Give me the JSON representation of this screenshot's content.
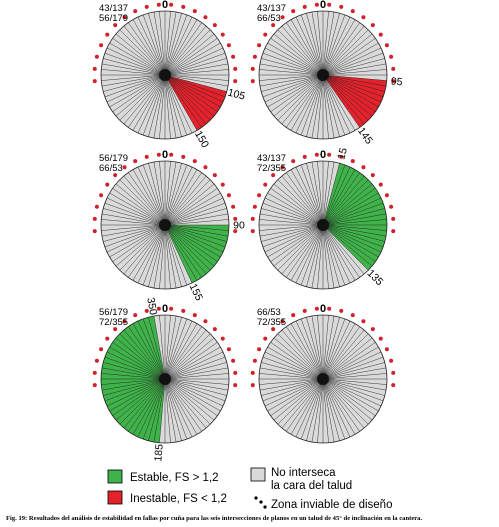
{
  "colors": {
    "stable": "#3fb34a",
    "unstable": "#e3222b",
    "neutral": "#dadada",
    "dot": "#d1202a",
    "line": "#222222"
  },
  "panels": [
    {
      "labels": [
        "43/137",
        "56/179"
      ],
      "north": "0",
      "sector": {
        "from": 105,
        "to": 150,
        "kind": "unstable"
      },
      "marks": [
        {
          "deg": 105,
          "text": "105"
        },
        {
          "deg": 150,
          "text": "150"
        }
      ]
    },
    {
      "labels": [
        "43/137",
        "66/53"
      ],
      "north": "0",
      "sector": {
        "from": 95,
        "to": 145,
        "kind": "unstable"
      },
      "marks": [
        {
          "deg": 95,
          "text": "95"
        },
        {
          "deg": 145,
          "text": "145"
        }
      ]
    },
    {
      "labels": [
        "56/179",
        "66/53"
      ],
      "north": "0",
      "sector": {
        "from": 90,
        "to": 155,
        "kind": "stable"
      },
      "marks": [
        {
          "deg": 90,
          "text": "90"
        },
        {
          "deg": 155,
          "text": "155"
        }
      ]
    },
    {
      "labels": [
        "43/137",
        "72/355"
      ],
      "north": "0",
      "sector": {
        "from": 15,
        "to": 135,
        "kind": "stable"
      },
      "marks": [
        {
          "deg": 15,
          "text": "15"
        },
        {
          "deg": 135,
          "text": "135"
        }
      ]
    },
    {
      "labels": [
        "56/179",
        "72/355"
      ],
      "north": "0",
      "sector": {
        "from": 185,
        "to": 350,
        "kind": "stable"
      },
      "marks": [
        {
          "deg": 350,
          "text": "350"
        },
        {
          "deg": 185,
          "text": "185"
        }
      ]
    },
    {
      "labels": [
        "66/53",
        "72/355"
      ],
      "north": "0",
      "sector": null,
      "marks": []
    }
  ],
  "legend": {
    "stable": "Estable, FS > 1,2",
    "unstable": "Inestable, FS < 1,2",
    "neutral_line1": "No interseca",
    "neutral_line2": "la cara del talud",
    "dots": "Zona inviable de diseño"
  },
  "caption": "Fig. 19: Resultados del análisis de estabilidad en fallas por cuña para las seis intersecciones de planos en un talud de 45° de inclinación en la cantera."
}
